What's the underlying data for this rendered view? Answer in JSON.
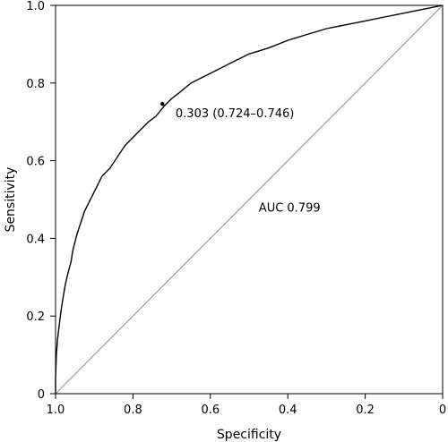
{
  "chart_data": {
    "type": "line",
    "xlabel": "Specificity",
    "ylabel": "Sensitivity",
    "x_reversed": true,
    "xlim": [
      1.0,
      0.0
    ],
    "ylim": [
      0,
      1.0
    ],
    "x_ticks": [
      1.0,
      0.8,
      0.6,
      0.4,
      0.2,
      0.0
    ],
    "x_tick_labels": [
      "1.0",
      "0.8",
      "0.6",
      "0.4",
      "0.2",
      "0"
    ],
    "y_ticks": [
      0,
      0.2,
      0.4,
      0.6,
      0.8,
      1.0
    ],
    "y_tick_labels": [
      "0",
      "0.2",
      "0.4",
      "0.6",
      "0.8",
      "1.0"
    ],
    "grid": false,
    "colors": {
      "roc": "#000000",
      "diagonal": "#8c8c8c"
    },
    "series": [
      {
        "kind": "roc",
        "x": [
          1.0,
          1.0,
          0.998,
          0.995,
          0.99,
          0.985,
          0.98,
          0.975,
          0.968,
          0.96,
          0.955,
          0.945,
          0.935,
          0.925,
          0.91,
          0.895,
          0.88,
          0.86,
          0.84,
          0.82,
          0.8,
          0.78,
          0.76,
          0.74,
          0.72,
          0.7,
          0.68,
          0.65,
          0.62,
          0.58,
          0.54,
          0.5,
          0.45,
          0.4,
          0.35,
          0.3,
          0.25,
          0.2,
          0.15,
          0.1,
          0.05,
          0.0
        ],
        "y": [
          0.0,
          0.04,
          0.1,
          0.14,
          0.18,
          0.22,
          0.25,
          0.28,
          0.31,
          0.34,
          0.37,
          0.41,
          0.44,
          0.47,
          0.5,
          0.53,
          0.56,
          0.58,
          0.61,
          0.64,
          0.66,
          0.68,
          0.7,
          0.715,
          0.74,
          0.76,
          0.775,
          0.8,
          0.815,
          0.835,
          0.855,
          0.875,
          0.89,
          0.91,
          0.925,
          0.94,
          0.95,
          0.96,
          0.97,
          0.98,
          0.99,
          1.0
        ]
      },
      {
        "kind": "diagonal",
        "x": [
          1.0,
          0.0
        ],
        "y": [
          0.0,
          1.0
        ]
      }
    ],
    "threshold_point": {
      "x": 0.724,
      "y": 0.746
    },
    "annotations": [
      {
        "text": "0.303 (0.724–0.746)",
        "x": 0.69,
        "y": 0.724
      },
      {
        "text": "AUC 0.799",
        "x": 0.475,
        "y": 0.48
      }
    ]
  }
}
